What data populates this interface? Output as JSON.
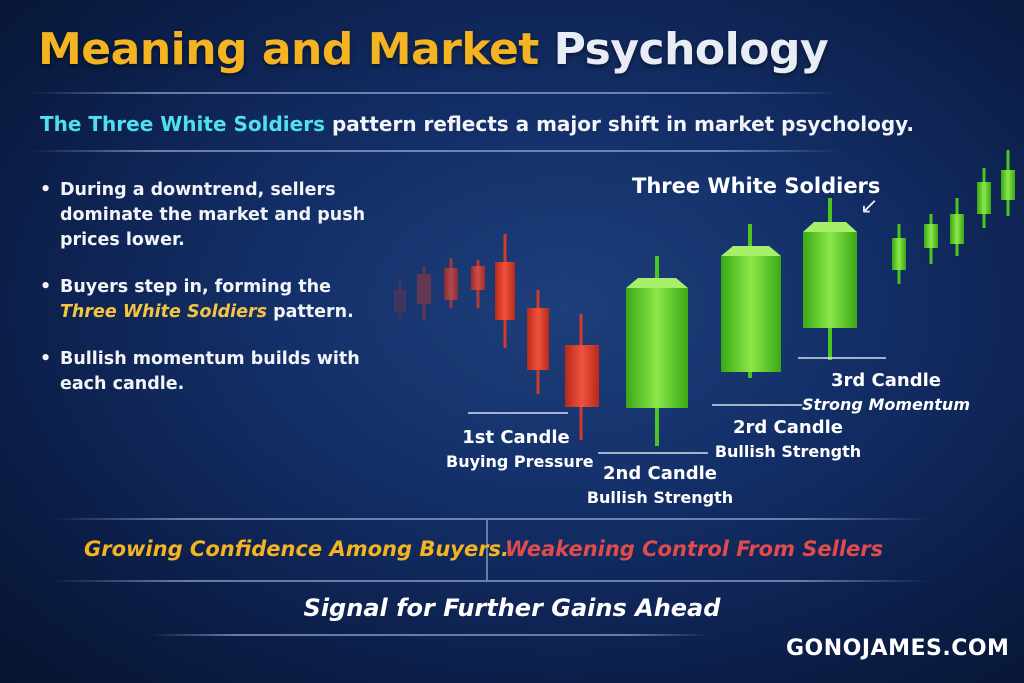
{
  "title": {
    "part1": "Meaning and Market",
    "part2": "Psychology"
  },
  "subtitle": {
    "highlight": "The Three White Soldiers",
    "rest": "pattern reflects a major shift in market psychology."
  },
  "bullets": {
    "b1": "During a downtrend, sellers dominate the market and push prices lower.",
    "b2_pre": "Buyers step in, forming the",
    "b2_highlight": "Three White Soldiers",
    "b2_post": "pattern.",
    "b3": "Bullish momentum builds with each candle."
  },
  "chart_labels": {
    "pattern_name": "Three White Soldiers",
    "c1_title": "1st Candle",
    "c1_sub": "Buying Pressure",
    "c2_title": "2nd Candle",
    "c2_sub": "Bullish Strength",
    "c3_title": "2rd Candle",
    "c3_sub": "Bullish Strength",
    "c4_title": "3rd Candle",
    "c4_sub": "Strong Momentum"
  },
  "bottom": {
    "left": "Growing Confidence Among Buyers.",
    "right": "Weakening Control From Sellers",
    "signal": "Signal for Further Gains Ahead"
  },
  "brand": "GONOJAMES.COM",
  "colors": {
    "gold": "#f4b320",
    "cyan": "#4fe0ef",
    "bearish_red": "#e24b3a",
    "bullish_green": "#4cc61e"
  },
  "icons": {
    "pointer": "arrow-down-left-icon"
  }
}
